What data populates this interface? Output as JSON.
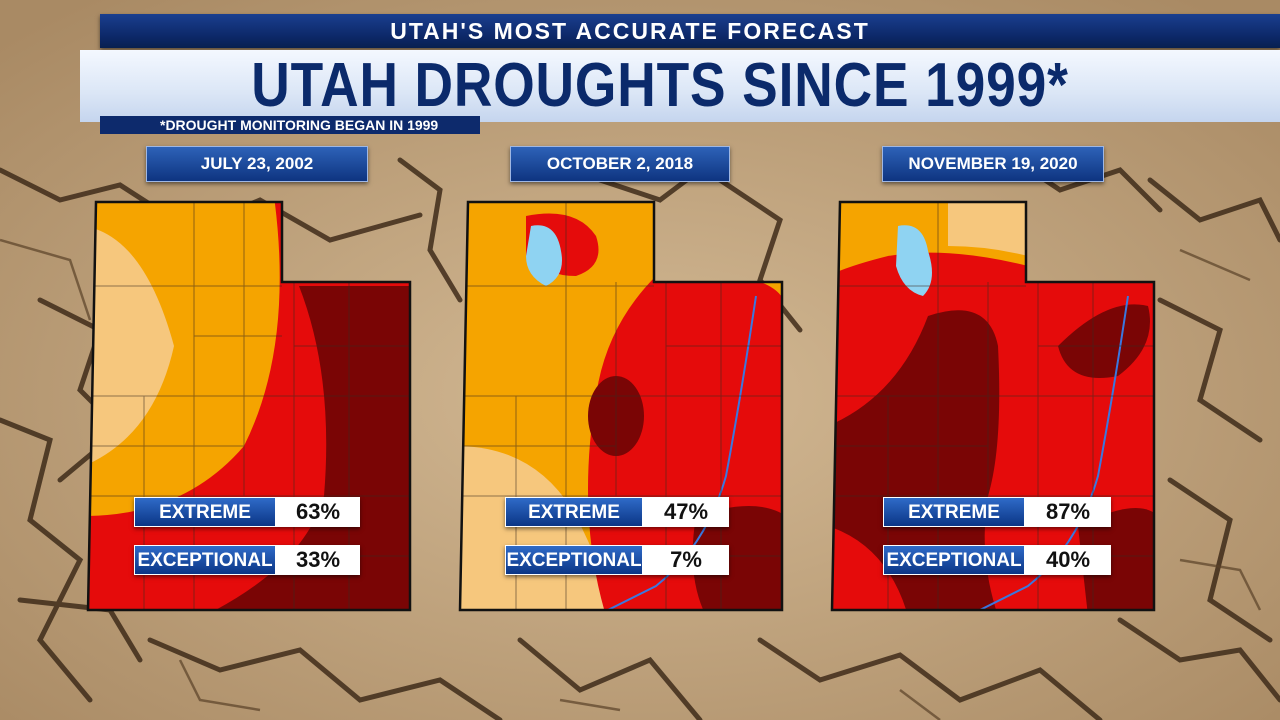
{
  "header": {
    "station_tagline": "UTAH'S MOST ACCURATE FORECAST",
    "title": "UTAH DROUGHTS SINCE 1999*",
    "footnote": "*DROUGHT MONITORING BEGAN IN 1999"
  },
  "colors": {
    "abnormally_dry": "#f6c77d",
    "severe": "#f5a400",
    "extreme": "#e50b0b",
    "exceptional": "#7a0505",
    "water": "#8fd3f2",
    "label_blue": "#0b3585"
  },
  "panels": [
    {
      "date": "JULY 23, 2002",
      "extreme_label": "EXTREME",
      "extreme_value": "63%",
      "exceptional_label": "EXCEPTIONAL",
      "exceptional_value": "33%"
    },
    {
      "date": "OCTOBER 2, 2018",
      "extreme_label": "EXTREME",
      "extreme_value": "47%",
      "exceptional_label": "EXCEPTIONAL",
      "exceptional_value": "7%"
    },
    {
      "date": "NOVEMBER 19, 2020",
      "extreme_label": "EXTREME",
      "extreme_value": "87%",
      "exceptional_label": "EXCEPTIONAL",
      "exceptional_value": "40%"
    }
  ]
}
